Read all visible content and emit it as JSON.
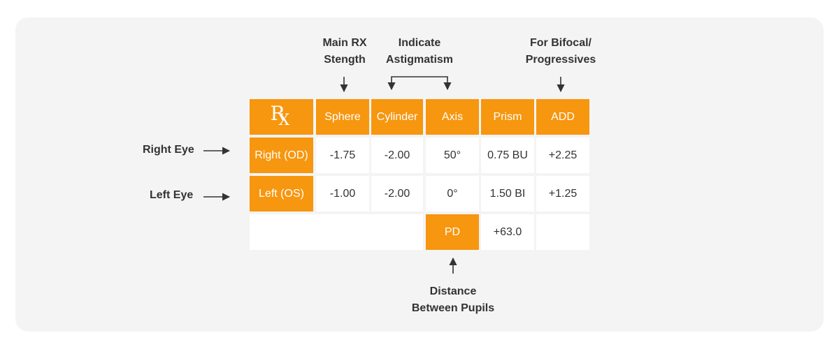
{
  "annotations": {
    "main_rx": "Main RX\nStength",
    "astigmatism": "Indicate\nAstigmatism",
    "bifocal": "For Bifocal/\nProgressives",
    "distance": "Distance\nBetween Pupils"
  },
  "side_labels": {
    "right_eye": "Right Eye",
    "left_eye": "Left Eye"
  },
  "table": {
    "logo_icon": "rx-symbol",
    "headers": [
      "Sphere",
      "Cylinder",
      "Axis",
      "Prism",
      "ADD"
    ],
    "rows": [
      {
        "label": "Right (OD)",
        "values": [
          "-1.75",
          "-2.00",
          "50°",
          "0.75 BU",
          "+2.25"
        ]
      },
      {
        "label": "Left (OS)",
        "values": [
          "-1.00",
          "-2.00",
          "0°",
          "1.50 BI",
          "+1.25"
        ]
      }
    ],
    "pd": {
      "label": "PD",
      "value": "+63.0"
    }
  },
  "colors": {
    "accent": "#f7960f",
    "panel": "#f4f4f4",
    "text": "#333333"
  }
}
